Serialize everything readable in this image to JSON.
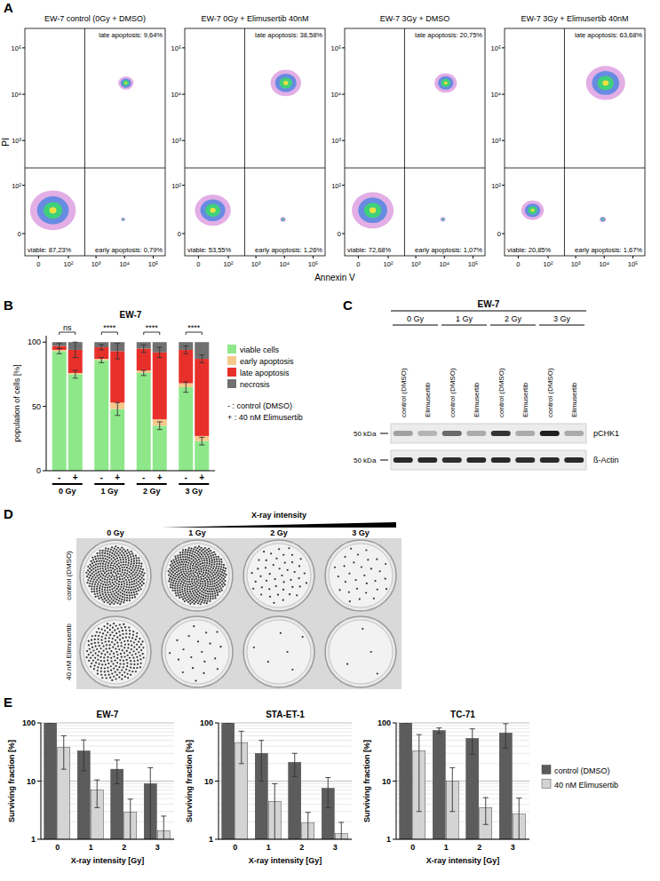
{
  "panel_letters": [
    "A",
    "B",
    "C",
    "D",
    "E"
  ],
  "chart_data": [
    {
      "type": "density",
      "title": "EW-7 control (0Gy + DMSO)",
      "x_label": "Annexin V",
      "y_label": "PI",
      "log": true,
      "xlim": [
        -20,
        262144
      ],
      "ylim": [
        -20,
        262144
      ],
      "xticks": [
        0,
        {
          "value": 100,
          "label": "10²"
        },
        {
          "value": 1000,
          "label": "10³"
        },
        {
          "value": 10000,
          "label": "10⁴"
        },
        {
          "value": 100000,
          "label": "10⁵"
        }
      ],
      "yticks": [
        0,
        {
          "value": 100,
          "label": "10²"
        },
        {
          "value": 1000,
          "label": "10³"
        },
        {
          "value": 10000,
          "label": "10⁴"
        },
        {
          "value": 100000,
          "label": "10⁵"
        }
      ],
      "gates": {
        "x": 400,
        "y": 250
      },
      "quadrants": {
        "viable": {
          "value": 87.23,
          "label": "viable: 87,23%"
        },
        "early": {
          "value": 0.79,
          "label": "early apoptosis: 0,79%"
        },
        "late": {
          "value": 9.64,
          "label": "late apoptosis: 9,64%"
        }
      }
    },
    {
      "type": "density",
      "title": "EW-7 0Gy + Elimusertib 40nM",
      "log": true,
      "xlim": [
        -20,
        262144
      ],
      "ylim": [
        -20,
        262144
      ],
      "xticks": [
        0,
        {
          "value": 100,
          "label": "10²"
        },
        {
          "value": 1000,
          "label": "10³"
        },
        {
          "value": 10000,
          "label": "10⁴"
        },
        {
          "value": 100000,
          "label": "10⁵"
        }
      ],
      "yticks": [
        0,
        {
          "value": 100,
          "label": "10²"
        },
        {
          "value": 1000,
          "label": "10³"
        },
        {
          "value": 10000,
          "label": "10⁴"
        },
        {
          "value": 100000,
          "label": "10⁵"
        }
      ],
      "gates": {
        "x": 400,
        "y": 250
      },
      "quadrants": {
        "viable": {
          "value": 53.55,
          "label": "viable: 53,55%"
        },
        "early": {
          "value": 1.26,
          "label": "early apoptosis: 1,26%"
        },
        "late": {
          "value": 38.58,
          "label": "late apoptosis: 38,58%"
        }
      }
    },
    {
      "type": "density",
      "title": "EW-7 3Gy + DMSO",
      "log": true,
      "xlim": [
        -20,
        262144
      ],
      "ylim": [
        -20,
        262144
      ],
      "xticks": [
        0,
        {
          "value": 100,
          "label": "10²"
        },
        {
          "value": 1000,
          "label": "10³"
        },
        {
          "value": 10000,
          "label": "10⁴"
        },
        {
          "value": 100000,
          "label": "10⁵"
        }
      ],
      "yticks": [
        0,
        {
          "value": 100,
          "label": "10²"
        },
        {
          "value": 1000,
          "label": "10³"
        },
        {
          "value": 10000,
          "label": "10⁴"
        },
        {
          "value": 100000,
          "label": "10⁵"
        }
      ],
      "gates": {
        "x": 400,
        "y": 250
      },
      "quadrants": {
        "viable": {
          "value": 72.68,
          "label": "viable: 72,68%"
        },
        "early": {
          "value": 1.07,
          "label": "early apoptosis: 1,07%"
        },
        "late": {
          "value": 20.75,
          "label": "late apoptosis: 20,75%"
        }
      }
    },
    {
      "type": "density",
      "title": "EW-7 3Gy + Elimusertib 40nM",
      "log": true,
      "xlim": [
        -20,
        262144
      ],
      "ylim": [
        -20,
        262144
      ],
      "xticks": [
        0,
        {
          "value": 100,
          "label": "10²"
        },
        {
          "value": 1000,
          "label": "10³"
        },
        {
          "value": 10000,
          "label": "10⁴"
        },
        {
          "value": 100000,
          "label": "10⁵"
        }
      ],
      "yticks": [
        0,
        {
          "value": 100,
          "label": "10²"
        },
        {
          "value": 1000,
          "label": "10³"
        },
        {
          "value": 10000,
          "label": "10⁴"
        },
        {
          "value": 100000,
          "label": "10⁵"
        }
      ],
      "gates": {
        "x": 400,
        "y": 250
      },
      "quadrants": {
        "viable": {
          "value": 20.85,
          "label": "viable: 20,85%"
        },
        "early": {
          "value": 1.67,
          "label": "early apoptosis: 1,67%"
        },
        "late": {
          "value": 63.68,
          "label": "late apoptosis: 63,68%"
        }
      }
    },
    {
      "type": "bar",
      "stacked": true,
      "title": "EW-7",
      "y_label": "population of cells [%]",
      "categories": [
        "-",
        "+",
        "-",
        "+",
        "-",
        "+",
        "-",
        "+"
      ],
      "groups": [
        "0 Gy",
        "1 Gy",
        "2 Gy",
        "3 Gy"
      ],
      "ylim": [
        0,
        105
      ],
      "yticks": [
        0,
        50,
        100
      ],
      "legend": "right",
      "legend_notes": [
        "- : control (DMSO)",
        "+ : 40 nM Elimusertib"
      ],
      "significance": [
        "ns",
        "****",
        "****",
        "****"
      ],
      "series": [
        {
          "name": "viable cells",
          "color": "#8ee88a",
          "values": [
            93,
            75,
            86,
            48,
            76,
            35,
            65,
            23
          ],
          "errors": [
            2,
            3,
            2,
            5,
            2,
            3,
            4,
            3
          ]
        },
        {
          "name": "early apoptosis",
          "color": "#f5c88c",
          "values": [
            1,
            1,
            1,
            5,
            2,
            5,
            3,
            4
          ]
        },
        {
          "name": "late apoptosis",
          "color": "#e8302a",
          "values": [
            3,
            18,
            9,
            40,
            17,
            52,
            26,
            60
          ],
          "errors": [
            2,
            6,
            2,
            6,
            3,
            4,
            3,
            3
          ]
        },
        {
          "name": "necrosis",
          "color": "#707070",
          "values": [
            3,
            6,
            4,
            7,
            5,
            8,
            6,
            13
          ]
        }
      ]
    },
    {
      "type": "bar",
      "title": "EW-7",
      "x_label": "X-ray intensity [Gy]",
      "y_label": "Surviving fraction [%]",
      "categories": [
        "0",
        "1",
        "2",
        "3"
      ],
      "log": "y",
      "grid": true,
      "ylim": [
        1,
        100
      ],
      "yticks": [
        1,
        10,
        100
      ],
      "series": [
        {
          "color": "#5c5c5c",
          "values": [
            100,
            33,
            16,
            9
          ],
          "errors": [
            0,
            18,
            7,
            8
          ]
        },
        {
          "color": "#d4d4d4",
          "values": [
            38,
            7,
            2.9,
            1.4
          ],
          "errors": [
            22,
            3.5,
            2,
            1.1
          ]
        }
      ]
    },
    {
      "type": "bar",
      "title": "STA-ET-1",
      "x_label": "X-ray intensity [Gy]",
      "y_label": "Surviving fraction [%]",
      "categories": [
        "0",
        "1",
        "2",
        "3"
      ],
      "log": "y",
      "grid": true,
      "ylim": [
        1,
        100
      ],
      "yticks": [
        1,
        10,
        100
      ],
      "series": [
        {
          "color": "#5c5c5c",
          "values": [
            100,
            30,
            21,
            7.5
          ],
          "errors": [
            0,
            20,
            9,
            4
          ]
        },
        {
          "color": "#d4d4d4",
          "values": [
            46,
            4.5,
            1.9,
            1.25
          ],
          "errors": [
            26,
            4.5,
            1,
            0.7
          ]
        }
      ]
    },
    {
      "type": "bar",
      "title": "TC-71",
      "x_label": "X-ray intensity [Gy]",
      "y_label": "Surviving fraction [%]",
      "categories": [
        "0",
        "1",
        "2",
        "3"
      ],
      "log": "y",
      "grid": true,
      "ylim": [
        1,
        100
      ],
      "yticks": [
        1,
        10,
        100
      ],
      "legend": "right",
      "series": [
        {
          "name": "control (DMSO)",
          "color": "#5c5c5c",
          "values": [
            100,
            74,
            54,
            67
          ],
          "errors": [
            0,
            8,
            25,
            30
          ]
        },
        {
          "name": "40 nM Elimusertib",
          "color": "#d4d4d4",
          "values": [
            33,
            10,
            3.5,
            2.7
          ],
          "errors": [
            30,
            7,
            1.7,
            2.4
          ]
        }
      ]
    }
  ],
  "blot": {
    "title": "EW-7",
    "groups": [
      "0 Gy",
      "1 Gy",
      "2 Gy",
      "3 Gy"
    ],
    "lanes": [
      "control (DMSO)",
      "Elimusertib",
      "control (DMSO)",
      "Elimusertib",
      "control (DMSO)",
      "Elimusertib",
      "control (DMSO)",
      "Elimusertib"
    ],
    "rows": [
      {
        "label": "pCHK1",
        "marker": "50 kDa",
        "intensity": [
          0.35,
          0.25,
          0.6,
          0.3,
          0.85,
          0.3,
          0.95,
          0.3
        ]
      },
      {
        "label": "ß-Actin",
        "marker": "50 kDa",
        "intensity": [
          0.9,
          0.9,
          0.88,
          0.9,
          0.9,
          0.88,
          0.9,
          0.9
        ]
      }
    ]
  },
  "plates": {
    "header": "X-ray intensity",
    "columns": [
      "0 Gy",
      "1 Gy",
      "2 Gy",
      "3 Gy"
    ],
    "rows": [
      {
        "label": "control (DMSO)",
        "colonies": [
          420,
          480,
          45,
          30
        ]
      },
      {
        "label": "40 nM Elimusertib",
        "colonies": [
          230,
          20,
          6,
          4
        ]
      }
    ]
  }
}
